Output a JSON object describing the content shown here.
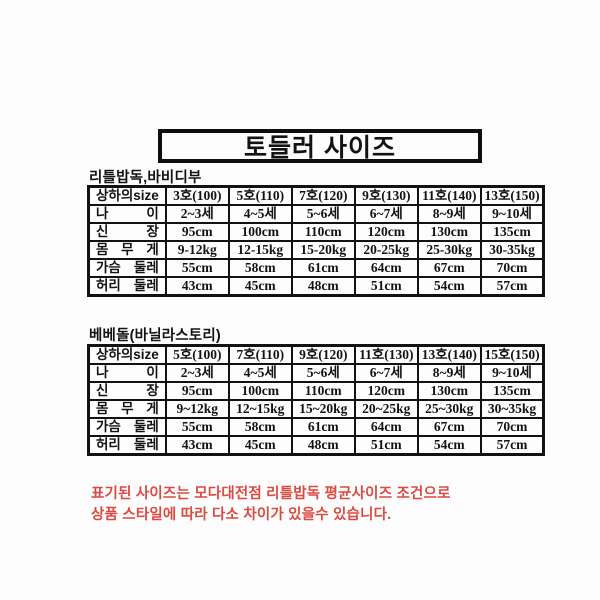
{
  "page": {
    "title": "토들러 사이즈",
    "background_color": "#fdfdfd",
    "ink_color": "#121212"
  },
  "tables": [
    {
      "subtitle": "리틀밥독,바비디부",
      "header": [
        "상하의size",
        "3호(100)",
        "5호(110)",
        "7호(120)",
        "9호(130)",
        "11호(140)",
        "13호(150)"
      ],
      "rows": [
        {
          "label": "나 이",
          "values": [
            "2~3세",
            "4~5세",
            "5~6세",
            "6~7세",
            "8~9세",
            "9~10세"
          ]
        },
        {
          "label": "신 장",
          "values": [
            "95cm",
            "100cm",
            "110cm",
            "120cm",
            "130cm",
            "135cm"
          ]
        },
        {
          "label": "몸 무 게",
          "values": [
            "9-12kg",
            "12-15kg",
            "15-20kg",
            "20-25kg",
            "25-30kg",
            "30-35kg"
          ]
        },
        {
          "label": "가슴 둘레",
          "values": [
            "55cm",
            "58cm",
            "61cm",
            "64cm",
            "67cm",
            "70cm"
          ]
        },
        {
          "label": "허리 둘레",
          "values": [
            "43cm",
            "45cm",
            "48cm",
            "51cm",
            "54cm",
            "57cm"
          ]
        }
      ]
    },
    {
      "subtitle": "베베돌(바닐라스토리)",
      "header": [
        "상하의size",
        "5호(100)",
        "7호(110)",
        "9호(120)",
        "11호(130)",
        "13호(140)",
        "15호(150)"
      ],
      "rows": [
        {
          "label": "나 이",
          "values": [
            "2~3세",
            "4~5세",
            "5~6세",
            "6~7세",
            "8~9세",
            "9~10세"
          ]
        },
        {
          "label": "신 장",
          "values": [
            "95cm",
            "100cm",
            "110cm",
            "120cm",
            "130cm",
            "135cm"
          ]
        },
        {
          "label": "몸 무 게",
          "values": [
            "9~12kg",
            "12~15kg",
            "15~20kg",
            "20~25kg",
            "25~30kg",
            "30~35kg"
          ]
        },
        {
          "label": "가슴 둘레",
          "values": [
            "55cm",
            "58cm",
            "61cm",
            "64cm",
            "67cm",
            "70cm"
          ]
        },
        {
          "label": "허리 둘레",
          "values": [
            "43cm",
            "45cm",
            "48cm",
            "51cm",
            "54cm",
            "57cm"
          ]
        }
      ]
    }
  ],
  "footnote": {
    "lines": [
      "표기된 사이즈는 모다대전점 리틀밥독 평균사이즈 조건으로",
      "상품 스타일에 따라 다소 차이가 있을수 있습니다."
    ],
    "color": "#dc4a41"
  }
}
